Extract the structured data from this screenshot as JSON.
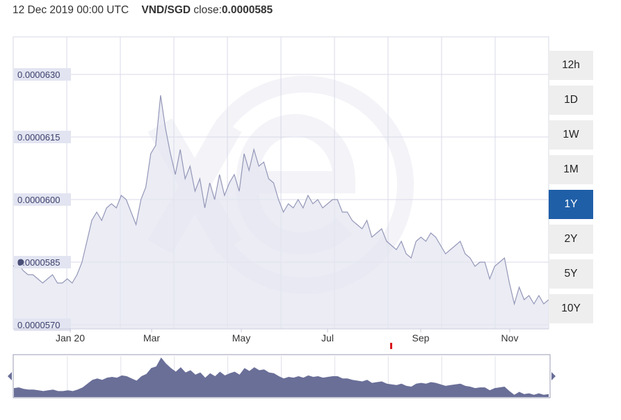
{
  "header": {
    "date": "12 Dec 2019 00:00 UTC",
    "pair": "VND/SGD",
    "close_label": "close:",
    "close_value": "0.0000585"
  },
  "range_buttons": [
    {
      "label": "12h",
      "active": false
    },
    {
      "label": "1D",
      "active": false
    },
    {
      "label": "1W",
      "active": false
    },
    {
      "label": "1M",
      "active": false
    },
    {
      "label": "1Y",
      "active": true
    },
    {
      "label": "2Y",
      "active": false
    },
    {
      "label": "5Y",
      "active": false
    },
    {
      "label": "10Y",
      "active": false
    }
  ],
  "colors": {
    "area_fill": "#e4e6f0",
    "line": "#9497b8",
    "navigator_fill": "#6a6f98",
    "active_button": "#1f5fa8",
    "marker": "#d9161b"
  },
  "chart_data": {
    "type": "area",
    "series": [
      {
        "values": [
          5.84e-05,
          5.85e-05,
          5.83e-05,
          5.82e-05,
          5.82e-05,
          5.81e-05,
          5.8e-05,
          5.81e-05,
          5.82e-05,
          5.8e-05,
          5.8e-05,
          5.81e-05,
          5.8e-05,
          5.82e-05,
          5.85e-05,
          5.9e-05,
          5.95e-05,
          5.97e-05,
          5.95e-05,
          5.98e-05,
          5.99e-05,
          5.98e-05,
          6.01e-05,
          6e-05,
          5.97e-05,
          5.94e-05,
          6e-05,
          6.03e-05,
          6.11e-05,
          6.13e-05,
          6.25e-05,
          6.17e-05,
          6.11e-05,
          6.06e-05,
          6.12e-05,
          6.05e-05,
          6.08e-05,
          6.02e-05,
          6.05e-05,
          5.98e-05,
          6.04e-05,
          6e-05,
          6.06e-05,
          6.01e-05,
          6.04e-05,
          6.06e-05,
          6.02e-05,
          6.11e-05,
          6.07e-05,
          6.12e-05,
          6.08e-05,
          6.09e-05,
          6.05e-05,
          6.04e-05,
          6e-05,
          5.97e-05,
          5.99e-05,
          5.98e-05,
          6e-05,
          5.98e-05,
          6.01e-05,
          5.99e-05,
          6e-05,
          5.98e-05,
          5.99e-05,
          6e-05,
          6e-05,
          5.97e-05,
          5.97e-05,
          5.95e-05,
          5.94e-05,
          5.93e-05,
          5.95e-05,
          5.91e-05,
          5.92e-05,
          5.93e-05,
          5.9e-05,
          5.89e-05,
          5.88e-05,
          5.9e-05,
          5.87e-05,
          5.86e-05,
          5.9e-05,
          5.91e-05,
          5.9e-05,
          5.92e-05,
          5.91e-05,
          5.89e-05,
          5.87e-05,
          5.88e-05,
          5.89e-05,
          5.9e-05,
          5.87e-05,
          5.86e-05,
          5.84e-05,
          5.85e-05,
          5.85e-05,
          5.81e-05,
          5.84e-05,
          5.85e-05,
          5.86e-05,
          5.8e-05,
          5.75e-05,
          5.79e-05,
          5.76e-05,
          5.77e-05,
          5.75e-05,
          5.77e-05,
          5.75e-05,
          5.76e-05
        ]
      }
    ],
    "x_tick_labels": [
      "Jan 20",
      "Mar",
      "May",
      "Jul",
      "Sep",
      "Nov"
    ],
    "y_tick_labels": [
      "0.0000570",
      "0.0000585",
      "0.0000600",
      "0.0000615",
      "0.0000630"
    ],
    "ylim": [
      5.69e-05,
      6.39e-05
    ],
    "grid": true
  }
}
